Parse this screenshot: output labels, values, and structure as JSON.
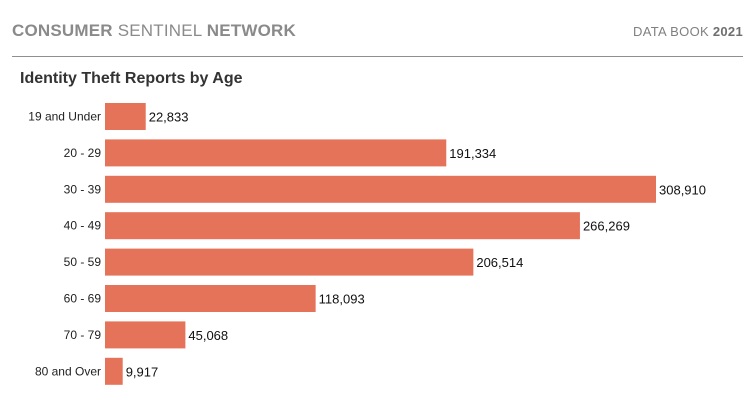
{
  "header": {
    "brand_part1": "CONSUMER",
    "brand_part2": "SENTINEL",
    "brand_part3": "NETWORK",
    "databook_label": "DATA BOOK",
    "databook_year": "2021"
  },
  "colors": {
    "bar": "#e4735a",
    "header_text": "#8a8a8a",
    "rule": "#8f8f8f"
  },
  "chart_data": {
    "type": "bar",
    "orientation": "horizontal",
    "title": "Identity Theft Reports by Age",
    "categories": [
      "19 and Under",
      "20 - 29",
      "30 - 39",
      "40 - 49",
      "50 - 59",
      "60 - 69",
      "70 - 79",
      "80 and Over"
    ],
    "values": [
      22833,
      191334,
      308910,
      266269,
      206514,
      118093,
      45068,
      9917
    ],
    "value_labels": [
      "22,833",
      "191,334",
      "308,910",
      "266,269",
      "206,514",
      "118,093",
      "45,068",
      "9,917"
    ],
    "xlim": [
      0,
      308910
    ],
    "grid": false,
    "legend": "none"
  }
}
